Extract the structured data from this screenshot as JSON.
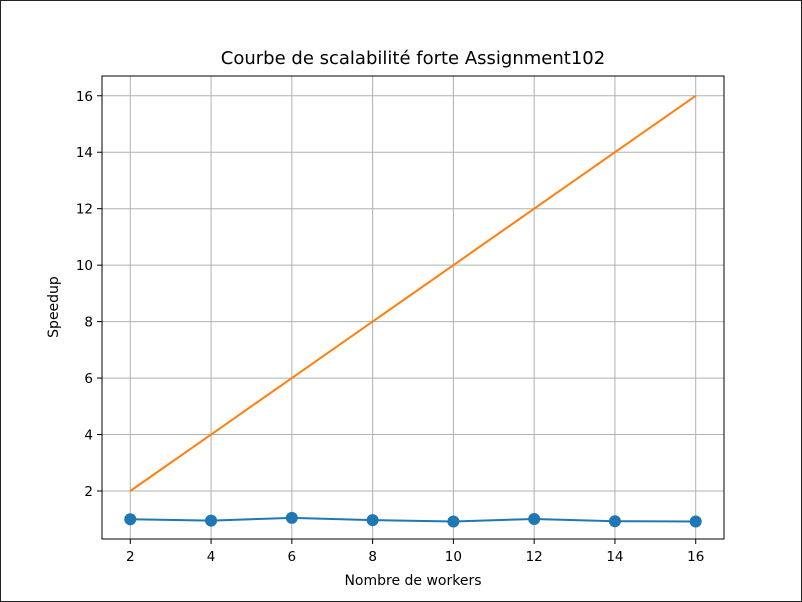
{
  "chart_data": {
    "type": "line",
    "title": "Courbe de scalabilité forte Assignment102",
    "xlabel": "Nombre de workers",
    "ylabel": "Speedup",
    "x": [
      2,
      4,
      6,
      8,
      10,
      12,
      14,
      16
    ],
    "xticks": [
      "2",
      "4",
      "6",
      "8",
      "10",
      "12",
      "14",
      "16"
    ],
    "yticks": [
      "2",
      "4",
      "6",
      "8",
      "10",
      "12",
      "14",
      "16"
    ],
    "xlim": [
      1.3,
      16.7
    ],
    "ylim": [
      0.3,
      16.7
    ],
    "grid": true,
    "series": [
      {
        "values": [
          1.0,
          0.95,
          1.05,
          0.97,
          0.92,
          1.01,
          0.93,
          0.92
        ],
        "color": "#1f77b4",
        "marker": "circle"
      },
      {
        "values": [
          2,
          4,
          6,
          8,
          10,
          12,
          14,
          16
        ],
        "color": "#ff7f0e",
        "marker": "none"
      }
    ]
  }
}
